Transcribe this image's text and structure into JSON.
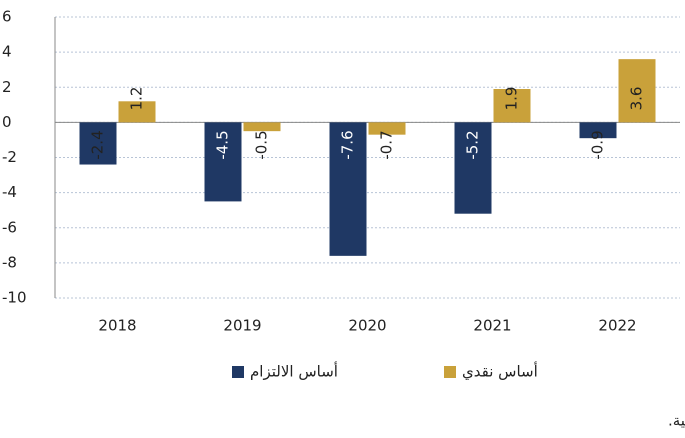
{
  "chart_data": {
    "type": "bar",
    "categories": [
      "2018",
      "2019",
      "2020",
      "2021",
      "2022"
    ],
    "series": [
      {
        "name": "أساس الالتزام",
        "color": "#1f3864",
        "values": [
          -2.4,
          -4.5,
          -7.6,
          -5.2,
          -0.9
        ]
      },
      {
        "name": "أساس نقدي",
        "color": "#c9a13a",
        "values": [
          1.2,
          -0.5,
          -0.7,
          1.9,
          3.6
        ]
      }
    ],
    "ylim": [
      -10,
      6
    ],
    "yticks": [
      6,
      4,
      2,
      0,
      -2,
      -4,
      -6,
      -8,
      -10
    ],
    "grid": true,
    "source": "المصدر: قاعدة بيانات وزارة المالية."
  }
}
